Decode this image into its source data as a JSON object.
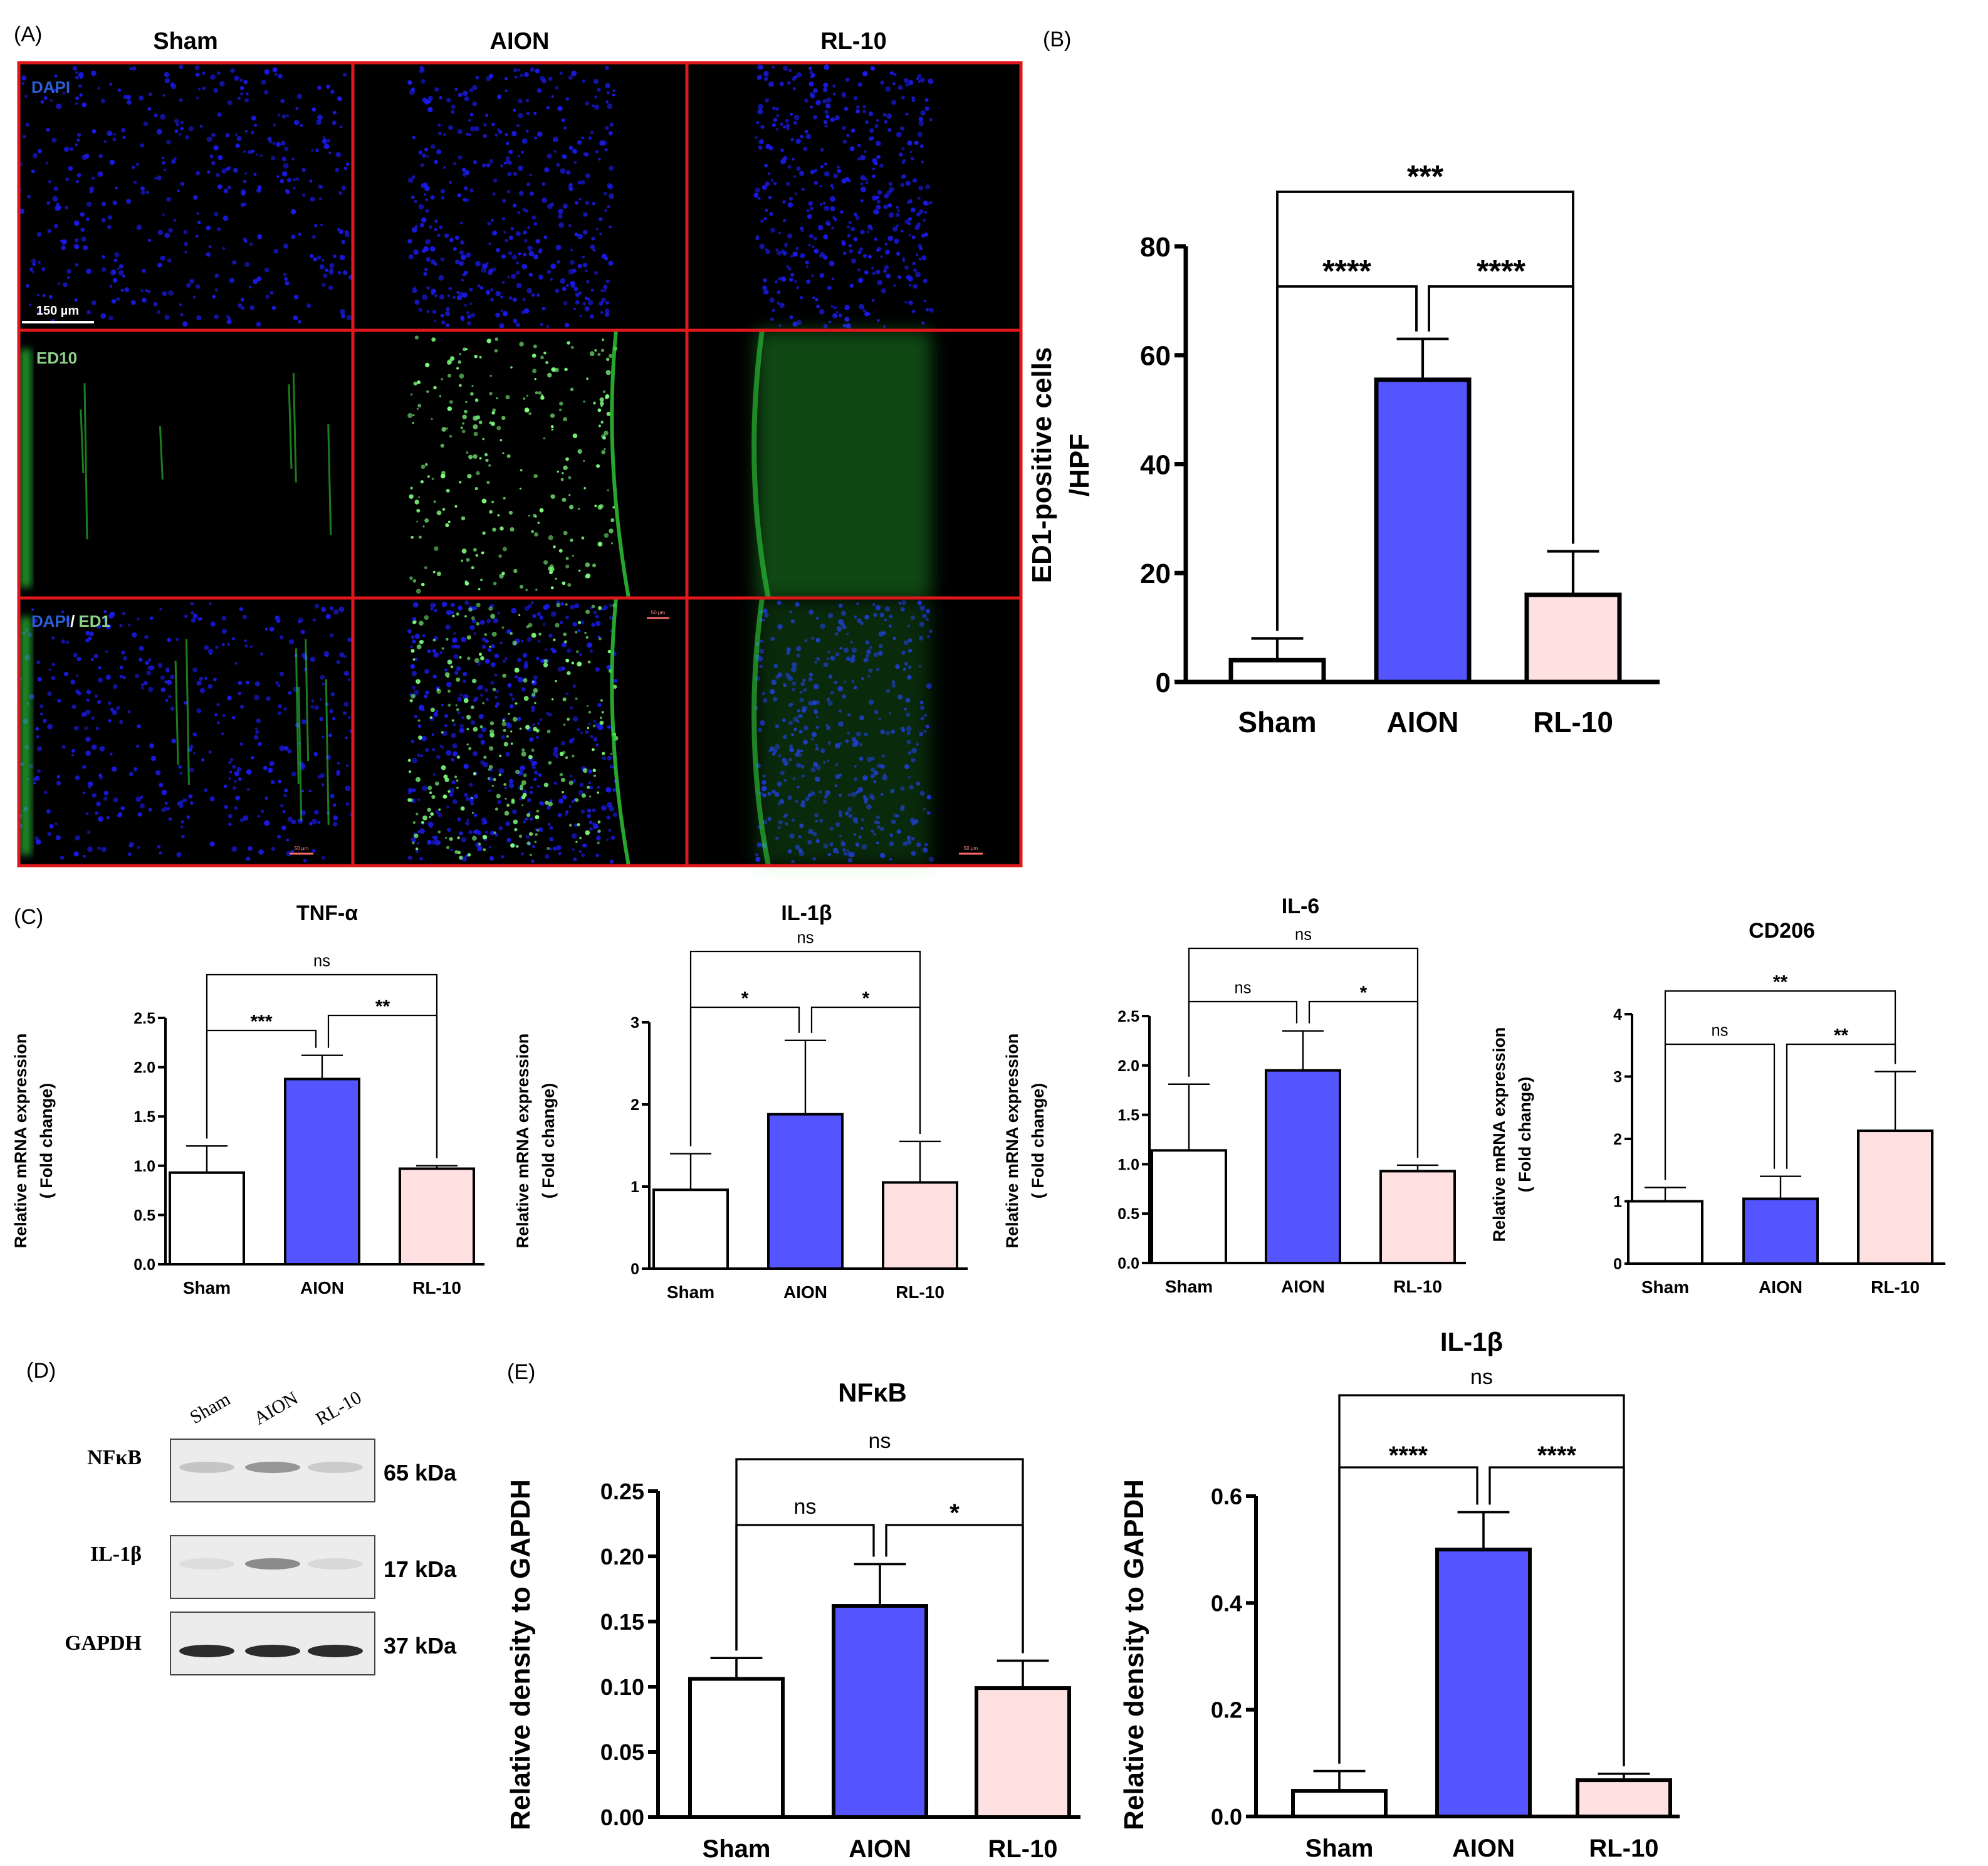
{
  "colors": {
    "sham": "#ffffff",
    "aion": "#5555ff",
    "rl10": "#ffe0e0",
    "frame": "#e0171b",
    "axis": "#000000",
    "dapi": "#1a1ae6",
    "ed1": "#2fcf3a"
  },
  "panelA": {
    "label": "(A)",
    "columns": [
      "Sham",
      "AION",
      "RL-10"
    ],
    "row_labels": {
      "dapi": "DAPI",
      "ed": "ED10",
      "merge_a": "DAPI",
      "merge_sep": "/",
      "merge_b": "ED1"
    },
    "scale_bar": "150 µm",
    "small_scale": "50 µm"
  },
  "panelD": {
    "label": "(D)",
    "lanes": [
      "Sham",
      "AION",
      "RL-10"
    ],
    "blots": [
      {
        "protein": "NFκB",
        "kda": "65 kDa",
        "intensity": [
          0.25,
          0.5,
          0.2
        ]
      },
      {
        "protein": "IL-1β",
        "kda": "17 kDa",
        "intensity": [
          0.05,
          0.55,
          0.1
        ]
      },
      {
        "protein": "GAPDH",
        "kda": "37 kDa",
        "intensity": [
          0.9,
          0.9,
          0.9
        ]
      }
    ]
  },
  "chart_data": [
    {
      "id": "B",
      "panel_label": "(B)",
      "type": "bar",
      "categories": [
        "Sham",
        "AION",
        "RL-10"
      ],
      "values": [
        4,
        55.5,
        16
      ],
      "errors": [
        4,
        7.5,
        8
      ],
      "ylabel": [
        "ED1-positive cells",
        "/HPF"
      ],
      "ylim": [
        0,
        80
      ],
      "ticks": [
        "0",
        "20",
        "40",
        "60",
        "80"
      ],
      "title": "",
      "significance": [
        {
          "from": 0,
          "to": 1,
          "label": "****"
        },
        {
          "from": 1,
          "to": 2,
          "label": "****"
        },
        {
          "from": 0,
          "to": 2,
          "label": "***"
        }
      ]
    },
    {
      "id": "C1",
      "panel_label": "(C)",
      "type": "bar",
      "title": "TNF-α",
      "categories": [
        "Sham",
        "AION",
        "RL-10"
      ],
      "values": [
        0.93,
        1.88,
        0.97
      ],
      "errors": [
        0.27,
        0.24,
        0.03
      ],
      "ylabel": [
        "Relative mRNA expression",
        "( Fold change)"
      ],
      "ylim": [
        0,
        2.5
      ],
      "ticks": [
        "0.0",
        "0.5",
        "1.0",
        "1.5",
        "2.0",
        "2.5"
      ],
      "significance": [
        {
          "from": 0,
          "to": 1,
          "label": "***"
        },
        {
          "from": 1,
          "to": 2,
          "label": "**"
        },
        {
          "from": 0,
          "to": 2,
          "label": "ns"
        }
      ]
    },
    {
      "id": "C2",
      "type": "bar",
      "title": "IL-1β",
      "categories": [
        "Sham",
        "AION",
        "RL-10"
      ],
      "values": [
        0.96,
        1.88,
        1.05
      ],
      "errors": [
        0.44,
        0.9,
        0.5
      ],
      "ylabel": [
        "Relative mRNA expression",
        "( Fold change)"
      ],
      "ylim": [
        0,
        3
      ],
      "ticks": [
        "0",
        "1",
        "2",
        "3"
      ],
      "significance": [
        {
          "from": 0,
          "to": 1,
          "label": "*"
        },
        {
          "from": 1,
          "to": 2,
          "label": "*"
        },
        {
          "from": 0,
          "to": 2,
          "label": "ns"
        }
      ]
    },
    {
      "id": "C3",
      "type": "bar",
      "title": "IL-6",
      "categories": [
        "Sham",
        "AION",
        "RL-10"
      ],
      "values": [
        1.14,
        1.95,
        0.93
      ],
      "errors": [
        0.67,
        0.4,
        0.06
      ],
      "ylabel": [
        "Relative mRNA expression",
        "( Fold change)"
      ],
      "ylim": [
        0,
        2.5
      ],
      "ticks": [
        "0.0",
        "0.5",
        "1.0",
        "1.5",
        "2.0",
        "2.5"
      ],
      "significance": [
        {
          "from": 0,
          "to": 1,
          "label": "ns"
        },
        {
          "from": 1,
          "to": 2,
          "label": "*"
        },
        {
          "from": 0,
          "to": 2,
          "label": "ns"
        }
      ]
    },
    {
      "id": "C4",
      "type": "bar",
      "title": "CD206",
      "categories": [
        "Sham",
        "AION",
        "RL-10"
      ],
      "values": [
        1.0,
        1.04,
        2.13
      ],
      "errors": [
        0.22,
        0.36,
        0.95
      ],
      "ylabel": [
        "Relative mRNA expression",
        "( Fold change)"
      ],
      "ylim": [
        0,
        4
      ],
      "ticks": [
        "0",
        "1",
        "2",
        "3",
        "4"
      ],
      "significance": [
        {
          "from": 0,
          "to": 1,
          "label": "ns"
        },
        {
          "from": 1,
          "to": 2,
          "label": "**"
        },
        {
          "from": 0,
          "to": 2,
          "label": "**"
        }
      ]
    },
    {
      "id": "E1",
      "panel_label": "(E)",
      "type": "bar",
      "title": "NFκB",
      "categories": [
        "Sham",
        "AION",
        "RL-10"
      ],
      "values": [
        0.106,
        0.162,
        0.099
      ],
      "errors": [
        0.016,
        0.032,
        0.021
      ],
      "ylabel": [
        "Relative density to GAPDH"
      ],
      "ylim": [
        0,
        0.25
      ],
      "ticks": [
        "0.00",
        "0.05",
        "0.10",
        "0.15",
        "0.20",
        "0.25"
      ],
      "significance": [
        {
          "from": 0,
          "to": 1,
          "label": "ns"
        },
        {
          "from": 1,
          "to": 2,
          "label": "*"
        },
        {
          "from": 0,
          "to": 2,
          "label": "ns"
        }
      ]
    },
    {
      "id": "E2",
      "type": "bar",
      "title": "IL-1β",
      "categories": [
        "Sham",
        "AION",
        "RL-10"
      ],
      "values": [
        0.048,
        0.5,
        0.068
      ],
      "errors": [
        0.037,
        0.07,
        0.012
      ],
      "ylabel": [
        "Relative density to GAPDH"
      ],
      "ylim": [
        0,
        0.6
      ],
      "ticks": [
        "0.0",
        "0.2",
        "0.4",
        "0.6"
      ],
      "significance": [
        {
          "from": 0,
          "to": 1,
          "label": "****"
        },
        {
          "from": 1,
          "to": 2,
          "label": "****"
        },
        {
          "from": 0,
          "to": 2,
          "label": "ns"
        }
      ]
    }
  ]
}
